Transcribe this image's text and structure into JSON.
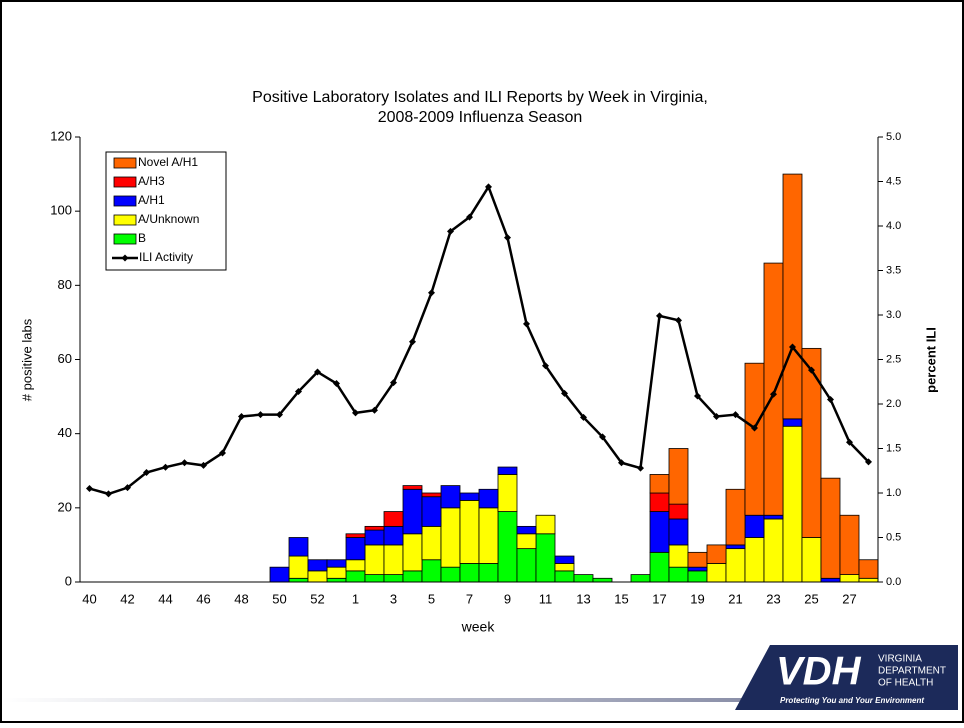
{
  "chart_data": {
    "type": "bar",
    "stacked": true,
    "title": [
      "Positive Laboratory Isolates and ILI Reports by Week in Virginia,",
      "2008-2009 Influenza Season"
    ],
    "x_label": "week",
    "y_label": "# positive labs",
    "y2_label": "percent ILI",
    "categories": [
      "40",
      null,
      "42",
      null,
      "44",
      null,
      "46",
      null,
      "48",
      null,
      "50",
      null,
      "52",
      null,
      "1",
      null,
      "3",
      null,
      "5",
      null,
      "7",
      null,
      "9",
      null,
      "11",
      null,
      "13",
      null,
      "15",
      null,
      "17",
      null,
      "19",
      null,
      "21",
      null,
      "23",
      null,
      "25",
      null,
      "27",
      null
    ],
    "ylim": [
      0,
      120
    ],
    "yticks": [
      0,
      20,
      40,
      60,
      80,
      100,
      120
    ],
    "y2lim": [
      0,
      5
    ],
    "y2ticks": [
      {
        "value": 0,
        "label": "0.0"
      },
      0.5,
      {
        "value": 1,
        "label": "1.0"
      },
      1.5,
      {
        "value": 2,
        "label": "2.0"
      },
      2.5,
      {
        "value": 3,
        "label": "3.0"
      },
      3.5,
      {
        "value": 4,
        "label": "4.0"
      },
      4.5,
      {
        "value": 5,
        "label": "5.0"
      }
    ],
    "legend": "top-left",
    "series": [
      {
        "name": "Novel A/H1",
        "color": "#ff6600",
        "values": [
          0,
          0,
          0,
          0,
          0,
          0,
          0,
          0,
          0,
          0,
          0,
          0,
          0,
          0,
          0,
          0,
          0,
          0,
          0,
          0,
          0,
          0,
          0,
          0,
          0,
          0,
          0,
          0,
          0,
          0,
          5,
          15,
          4,
          5,
          15,
          41,
          68,
          66,
          51,
          27,
          16,
          5
        ]
      },
      {
        "name": "A/H3",
        "color": "#ff0000",
        "values": [
          0,
          0,
          0,
          0,
          0,
          0,
          0,
          0,
          0,
          0,
          0,
          0,
          0,
          0,
          1,
          1,
          4,
          1,
          1,
          0,
          0,
          0,
          0,
          0,
          0,
          0,
          0,
          0,
          0,
          0,
          5,
          4,
          0,
          0,
          0,
          0,
          0,
          0,
          0,
          0,
          0,
          0
        ]
      },
      {
        "name": "A/H1",
        "color": "#0000ff",
        "values": [
          0,
          0,
          0,
          0,
          0,
          0,
          0,
          0,
          0,
          0,
          4,
          5,
          3,
          2,
          6,
          4,
          5,
          12,
          8,
          6,
          2,
          5,
          2,
          2,
          0,
          2,
          0,
          0,
          0,
          0,
          11,
          7,
          1,
          0,
          1,
          6,
          1,
          2,
          0,
          1,
          0,
          0
        ]
      },
      {
        "name": "A/Unknown",
        "color": "#ffff00",
        "values": [
          0,
          0,
          0,
          0,
          0,
          0,
          0,
          0,
          0,
          0,
          0,
          6,
          3,
          3,
          3,
          8,
          8,
          10,
          9,
          16,
          17,
          15,
          10,
          4,
          5,
          2,
          0,
          0,
          0,
          0,
          0,
          6,
          0,
          5,
          9,
          12,
          17,
          42,
          12,
          0,
          2,
          1
        ]
      },
      {
        "name": "B",
        "color": "#00ff00",
        "values": [
          0,
          0,
          0,
          0,
          0,
          0,
          0,
          0,
          0,
          0,
          0,
          1,
          0,
          1,
          3,
          2,
          2,
          3,
          6,
          4,
          5,
          5,
          19,
          9,
          13,
          3,
          2,
          1,
          0,
          2,
          8,
          4,
          3,
          0,
          0,
          0,
          0,
          0,
          0,
          0,
          0,
          0
        ]
      },
      {
        "name": "ILI Activity",
        "color": "#000000",
        "type": "line",
        "axis": "y2",
        "values": [
          1.05,
          0.99,
          1.06,
          1.23,
          1.29,
          1.34,
          1.31,
          1.45,
          1.86,
          1.88,
          1.88,
          2.14,
          2.36,
          2.23,
          1.9,
          1.93,
          2.24,
          2.7,
          3.25,
          3.94,
          4.1,
          4.44,
          3.87,
          2.9,
          2.43,
          2.12,
          1.85,
          1.63,
          1.34,
          1.28,
          2.99,
          2.94,
          2.09,
          1.86,
          1.88,
          1.73,
          2.11,
          2.64,
          2.38,
          2.05,
          1.57,
          1.35
        ]
      }
    ]
  },
  "logo": {
    "mark": "VDH",
    "lines": [
      "VIRGINIA",
      "DEPARTMENT",
      "OF HEALTH"
    ],
    "tagline": "Protecting You and Your Environment"
  }
}
